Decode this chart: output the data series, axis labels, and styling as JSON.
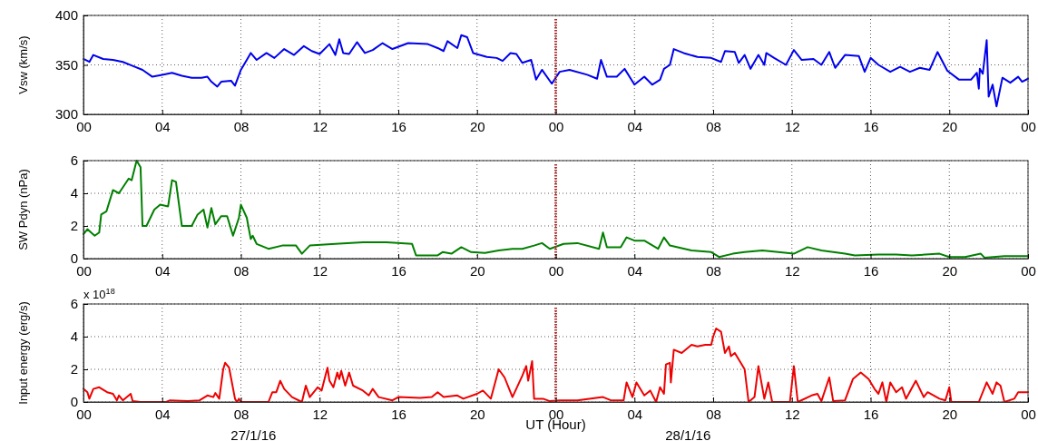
{
  "chart_data": [
    {
      "type": "line",
      "ylabel": "Vsw (km/s)",
      "xlim": [
        0,
        48
      ],
      "xticks": [
        {
          "value": 0,
          "label": "00"
        },
        {
          "value": 4,
          "label": "04"
        },
        {
          "value": 8,
          "label": "08"
        },
        {
          "value": 12,
          "label": "12"
        },
        {
          "value": 16,
          "label": "16"
        },
        {
          "value": 20,
          "label": "20"
        },
        {
          "value": 24,
          "label": "00"
        },
        {
          "value": 28,
          "label": "04"
        },
        {
          "value": 32,
          "label": "08"
        },
        {
          "value": 36,
          "label": "12"
        },
        {
          "value": 40,
          "label": "16"
        },
        {
          "value": 44,
          "label": "20"
        },
        {
          "value": 48,
          "label": "00"
        }
      ],
      "ylim": [
        300,
        400
      ],
      "yticks": [
        300,
        350,
        400
      ],
      "grid": true,
      "line_style": "solid",
      "ref_lines": [
        {
          "axis": "x",
          "value": 24,
          "color": "#b03030",
          "line_style": "dotted"
        }
      ],
      "series": [
        {
          "color": "#0000ee",
          "x": [
            0,
            0.3,
            0.5,
            1,
            1.5,
            2,
            2.5,
            3,
            3.5,
            4,
            4.5,
            5,
            5.5,
            6,
            6.3,
            6.5,
            6.8,
            7,
            7.5,
            7.7,
            8,
            8.3,
            8.5,
            8.8,
            9.3,
            9.7,
            10.2,
            10.7,
            11.2,
            11.6,
            12,
            12.5,
            12.8,
            13,
            13.2,
            13.5,
            13.9,
            14.3,
            14.7,
            15.2,
            15.7,
            16.5,
            17.5,
            18,
            18.3,
            18.5,
            19,
            19.2,
            19.5,
            19.8,
            20.5,
            21,
            21.3,
            21.7,
            22,
            22.3,
            22.75,
            23,
            23.3,
            23.8,
            24.2,
            24.7,
            25.6,
            26.1,
            26.3,
            26.6,
            27.1,
            27.5,
            28,
            28.5,
            28.9,
            29.3,
            29.5,
            29.8,
            30,
            30.5,
            31.2,
            31.9,
            32.4,
            32.6,
            33.1,
            33.3,
            33.6,
            33.9,
            34.3,
            34.6,
            34.7,
            35.1,
            35.7,
            36.1,
            36.5,
            37.1,
            37.5,
            37.9,
            38.2,
            38.7,
            39.4,
            39.7,
            40,
            40.4,
            41,
            41.5,
            42,
            42.5,
            43,
            43.4,
            43.9,
            44.5,
            45.1,
            45.4,
            45.5,
            45.55,
            45.7,
            45.9,
            46,
            46.2,
            46.4,
            46.7,
            47.1,
            47.5,
            47.7,
            48
          ],
          "values": [
            356,
            353,
            360,
            356,
            355,
            353,
            349,
            345,
            338,
            340,
            342,
            339,
            337,
            337,
            338,
            333,
            328,
            333,
            334,
            329,
            345,
            355,
            362,
            355,
            362,
            357,
            366,
            360,
            369,
            364,
            361,
            371,
            360,
            376,
            362,
            361,
            373,
            362,
            365,
            372,
            366,
            372,
            371,
            367,
            364,
            374,
            367,
            380,
            378,
            362,
            358,
            357,
            354,
            362,
            361,
            352,
            355,
            335,
            345,
            331,
            343,
            345,
            340,
            336,
            355,
            338,
            338,
            346,
            330,
            338,
            330,
            335,
            346,
            350,
            366,
            362,
            358,
            357,
            353,
            364,
            363,
            352,
            360,
            346,
            360,
            350,
            362,
            357,
            350,
            365,
            355,
            356,
            350,
            363,
            347,
            360,
            359,
            343,
            357,
            350,
            343,
            348,
            343,
            347,
            345,
            363,
            344,
            335,
            335,
            342,
            326,
            346,
            341,
            375,
            318,
            330,
            308,
            337,
            332,
            338,
            333,
            336
          ]
        }
      ]
    },
    {
      "type": "line",
      "ylabel": "SW Pdyn (nPa)",
      "xlim": [
        0,
        48
      ],
      "xticks": [
        {
          "value": 0,
          "label": "00"
        },
        {
          "value": 4,
          "label": "04"
        },
        {
          "value": 8,
          "label": "08"
        },
        {
          "value": 12,
          "label": "12"
        },
        {
          "value": 16,
          "label": "16"
        },
        {
          "value": 20,
          "label": "20"
        },
        {
          "value": 24,
          "label": "00"
        },
        {
          "value": 28,
          "label": "04"
        },
        {
          "value": 32,
          "label": "08"
        },
        {
          "value": 36,
          "label": "12"
        },
        {
          "value": 40,
          "label": "16"
        },
        {
          "value": 44,
          "label": "20"
        },
        {
          "value": 48,
          "label": "00"
        }
      ],
      "ylim": [
        0,
        6
      ],
      "yticks": [
        0,
        2,
        4,
        6
      ],
      "grid": true,
      "line_style": "solid",
      "ref_lines": [
        {
          "axis": "x",
          "value": 24,
          "color": "#b03030",
          "line_style": "dotted"
        }
      ],
      "series": [
        {
          "color": "#008000",
          "x": [
            0,
            0.2,
            0.57,
            0.8,
            0.9,
            1.17,
            1.5,
            1.8,
            2.3,
            2.45,
            2.7,
            2.9,
            3,
            3.2,
            3.6,
            3.9,
            4.3,
            4.5,
            4.7,
            5,
            5.5,
            5.8,
            6.1,
            6.3,
            6.5,
            6.7,
            7,
            7.3,
            7.6,
            7.9,
            8,
            8.3,
            8.5,
            8.6,
            8.8,
            9.4,
            10.1,
            10.8,
            11.1,
            11.5,
            12.8,
            14.2,
            15.4,
            16.7,
            16.9,
            18,
            18.25,
            18.7,
            19.2,
            19.7,
            20.4,
            21.1,
            21.8,
            22.3,
            22.9,
            23.3,
            23.7,
            24.4,
            25.1,
            26.2,
            26.4,
            26.6,
            27.3,
            27.6,
            28,
            28.5,
            29.2,
            29.5,
            29.8,
            30.9,
            31.9,
            32.3,
            33,
            33.6,
            34.5,
            35.3,
            36.1,
            36.8,
            37.5,
            38.7,
            39.2,
            40.4,
            41.3,
            42.1,
            43.5,
            44,
            44.8,
            45.6,
            45.8,
            46.8,
            47.8,
            48
          ],
          "values": [
            1.5,
            1.8,
            1.4,
            1.6,
            2.7,
            2.9,
            4.2,
            4,
            4.9,
            4.8,
            6,
            5.6,
            2,
            2,
            3,
            3.3,
            3.2,
            4.8,
            4.7,
            2,
            2,
            2.7,
            3,
            1.9,
            3.1,
            2.1,
            2.6,
            2.6,
            1.4,
            2.5,
            3.3,
            2.5,
            1.2,
            1.4,
            0.9,
            0.6,
            0.8,
            0.8,
            0.3,
            0.8,
            0.9,
            1,
            1,
            0.9,
            0.2,
            0.2,
            0.4,
            0.3,
            0.7,
            0.4,
            0.35,
            0.5,
            0.6,
            0.6,
            0.8,
            0.95,
            0.6,
            0.9,
            0.95,
            0.6,
            1.6,
            0.7,
            0.7,
            1.3,
            1.1,
            1.1,
            0.6,
            1.3,
            0.8,
            0.5,
            0.4,
            0.1,
            0.3,
            0.4,
            0.5,
            0.4,
            0.3,
            0.7,
            0.5,
            0.3,
            0.2,
            0.25,
            0.25,
            0.2,
            0.3,
            0.1,
            0.1,
            0.3,
            0.05,
            0.15,
            0.15,
            0.15
          ]
        }
      ]
    },
    {
      "type": "line",
      "ylabel": "Input energy (erg/s)",
      "xlabel": "UT (Hour)",
      "annotations": [
        "x 10$^{18}$",
        "27/1/16",
        "28/1/16"
      ],
      "xlim": [
        0,
        48
      ],
      "xticks": [
        {
          "value": 0,
          "label": "00"
        },
        {
          "value": 4,
          "label": "04"
        },
        {
          "value": 8,
          "label": "08"
        },
        {
          "value": 12,
          "label": "12"
        },
        {
          "value": 16,
          "label": "16"
        },
        {
          "value": 20,
          "label": "20"
        },
        {
          "value": 24,
          "label": "00"
        },
        {
          "value": 28,
          "label": "04"
        },
        {
          "value": 32,
          "label": "08"
        },
        {
          "value": 36,
          "label": "12"
        },
        {
          "value": 40,
          "label": "16"
        },
        {
          "value": 44,
          "label": "20"
        },
        {
          "value": 48,
          "label": "00"
        }
      ],
      "ylim": [
        0,
        6
      ],
      "yticks": [
        0,
        2,
        4,
        6
      ],
      "grid": true,
      "line_style": "solid",
      "ref_lines": [
        {
          "axis": "x",
          "value": 24,
          "color": "#b03030",
          "line_style": "dotted"
        }
      ],
      "series": [
        {
          "color": "#ee0000",
          "x": [
            0,
            0.2,
            0.3,
            0.5,
            0.8,
            1.2,
            1.5,
            1.7,
            1.8,
            2,
            2.4,
            2.5,
            2.9,
            4.2,
            4.4,
            5.3,
            5.9,
            6.3,
            6.6,
            6.7,
            6.9,
            7.1,
            7.2,
            7.4,
            7.7,
            7.8,
            7.9,
            8,
            9.4,
            9.6,
            9.8,
            10,
            10.2,
            10.6,
            11.1,
            11.3,
            11.5,
            11.9,
            12.1,
            12.4,
            12.5,
            12.7,
            12.9,
            13,
            13.1,
            13.3,
            13.5,
            13.7,
            14.2,
            14.5,
            14.7,
            15,
            15.7,
            16,
            17.1,
            17.7,
            18,
            18.3,
            19,
            19.3,
            20,
            20.3,
            20.7,
            21.1,
            21.4,
            21.8,
            22.3,
            22.5,
            22.6,
            22.8,
            22.9,
            23.35,
            23.7,
            24.2,
            25.1,
            26.4,
            26.8,
            27.45,
            27.6,
            27.9,
            28.1,
            28.5,
            28.8,
            29.1,
            29.3,
            29.5,
            29.6,
            29.8,
            29.85,
            30,
            30.4,
            30.9,
            31.2,
            31.6,
            31.9,
            32,
            32.15,
            32.4,
            32.6,
            32.8,
            32.9,
            33.1,
            33.4,
            33.6,
            33.8,
            34.1,
            34.3,
            34.6,
            34.8,
            35,
            35.9,
            36.1,
            36.3,
            37,
            37.3,
            37.5,
            37.9,
            38.1,
            38.7,
            39.1,
            39.5,
            39.9,
            40.2,
            40.4,
            40.6,
            40.8,
            41,
            41.3,
            41.6,
            41.8,
            42.3,
            42.7,
            42.9,
            43.5,
            43.8,
            44,
            44.1,
            45.5,
            45.9,
            46.2,
            46.4,
            46.6,
            46.8,
            47.3,
            47.5,
            47.8,
            48
          ],
          "values": [
            0.8,
            0.6,
            0.2,
            0.8,
            0.9,
            0.6,
            0.5,
            0.1,
            0.4,
            0.1,
            0.5,
            0.05,
            0,
            0,
            0.1,
            0.05,
            0.1,
            0.4,
            0.3,
            0.55,
            0.2,
            2,
            2.4,
            2.1,
            0.2,
            0,
            0.2,
            0,
            0,
            0.6,
            0.6,
            1.3,
            0.8,
            0.3,
            0,
            1,
            0.3,
            0.9,
            0.7,
            2.1,
            1.3,
            0.9,
            1.8,
            1.4,
            1.9,
            1,
            1.8,
            1,
            0.7,
            0.4,
            0.8,
            0.3,
            0.1,
            0.3,
            0.25,
            0.3,
            0.6,
            0.3,
            0.4,
            0.2,
            0.5,
            0.7,
            0.2,
            2,
            1.5,
            0.3,
            1.6,
            2.2,
            1.3,
            2.5,
            0.2,
            0.2,
            0.05,
            0.1,
            0.1,
            0.3,
            0.1,
            0.1,
            1.2,
            0.3,
            1.2,
            0.4,
            0.7,
            0,
            0.9,
            0.5,
            2.3,
            2.4,
            1.2,
            3.2,
            3,
            3.5,
            3.4,
            3.5,
            3.5,
            4,
            4.5,
            4.3,
            3,
            3.4,
            2.8,
            3,
            2.4,
            2,
            0,
            0.3,
            2.2,
            0.2,
            1.2,
            0,
            0,
            2.2,
            0,
            0.4,
            0.5,
            0.05,
            1.5,
            0.05,
            0.1,
            1.4,
            1.8,
            1.4,
            0.8,
            0.5,
            1.2,
            0,
            1.2,
            0.6,
            0.9,
            0.2,
            1.3,
            0.3,
            0.6,
            0.2,
            0.1,
            0.9,
            0,
            0,
            1.2,
            0.5,
            1.2,
            1,
            0,
            0.2,
            0.6,
            0.6,
            0.6
          ]
        }
      ]
    }
  ]
}
